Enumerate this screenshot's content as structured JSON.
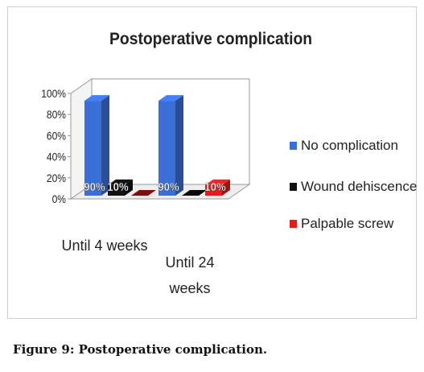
{
  "chart_data": {
    "type": "bar",
    "title": "Postoperative complication",
    "categories": [
      "Until 4 weeks",
      "Until 24 weeks"
    ],
    "y_ticks": [
      "0%",
      "20%",
      "40%",
      "60%",
      "80%",
      "100%"
    ],
    "ylim": [
      0,
      100
    ],
    "series": [
      {
        "name": "No complication",
        "values": [
          90,
          90
        ],
        "labels": [
          "90%",
          "90%"
        ],
        "color": "#3a6fd8"
      },
      {
        "name": "Wound dehiscence",
        "values": [
          10,
          0
        ],
        "labels": [
          "10%",
          ""
        ],
        "color": "#111111"
      },
      {
        "name": "Palpable screw",
        "values": [
          0,
          10
        ],
        "labels": [
          "",
          "10%"
        ],
        "color": "#e31b1b"
      }
    ],
    "legend_position": "right",
    "grid": false
  },
  "caption": "Figure 9: Postoperative complication."
}
